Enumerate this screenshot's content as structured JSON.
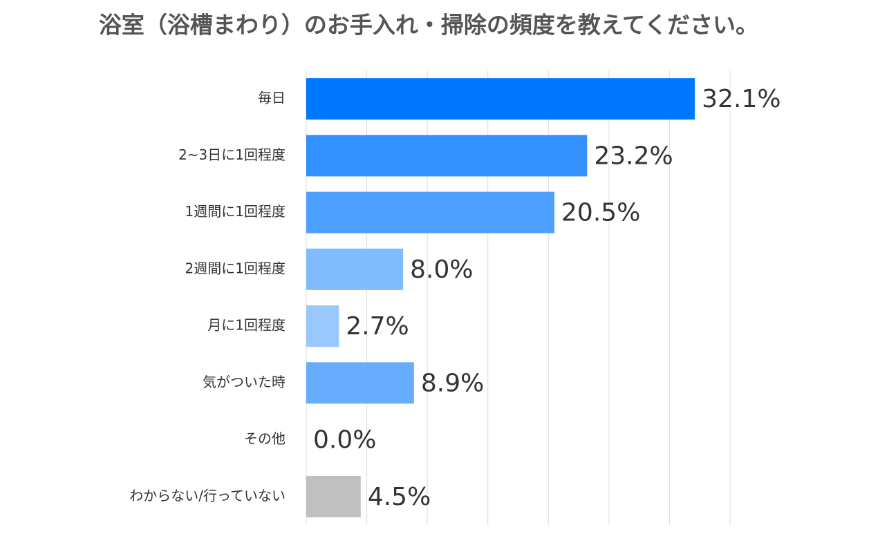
{
  "chart_data": {
    "type": "barh",
    "title": "浴室（浴槽まわり）のお手入れ・掃除の頻度を教えてください。",
    "categories": [
      "毎日",
      "2~3日に1回程度",
      "1週間に1回程度",
      "2週間に1回程度",
      "月に1回程度",
      "気がついた時",
      "その他",
      "わからない/行っていない"
    ],
    "values": [
      32.1,
      23.2,
      20.5,
      8.0,
      2.7,
      8.9,
      0.0,
      4.5
    ],
    "value_labels": [
      "32.1%",
      "23.2%",
      "20.5%",
      "8.0%",
      "2.7%",
      "8.9%",
      "0.0%",
      "4.5%"
    ],
    "colors": [
      "#0077ff",
      "#3390ff",
      "#4da0ff",
      "#80bbff",
      "#99c8ff",
      "#66adff",
      "#80bbff",
      "#c0c0c0"
    ],
    "xlim": [
      0,
      35
    ],
    "xticks": [
      0,
      5,
      10,
      15,
      20,
      25,
      30,
      35
    ],
    "grid": true
  }
}
